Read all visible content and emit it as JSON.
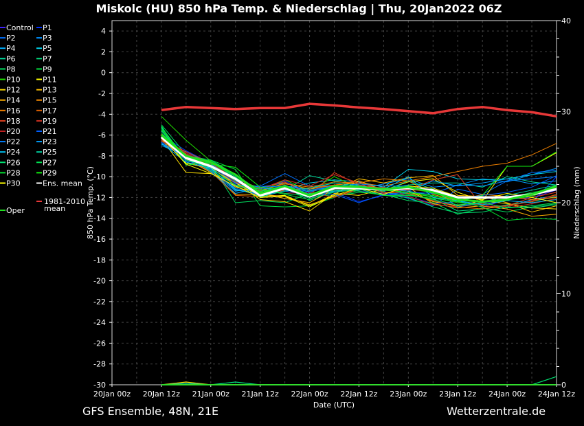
{
  "header": {
    "title": "Miskolc  (HU)  850 hPa Temp. & Niederschlag | Thu, 20Jan2022 06Z"
  },
  "footer": {
    "left": "GFS Ensemble, 48N, 21E",
    "right": "Wetterzentrale.de"
  },
  "chart_data": {
    "type": "line",
    "title": "Miskolc  (HU)  850 hPa Temp. & Niederschlag | Thu, 20Jan2022 06Z",
    "xlabel": "Date (UTC)",
    "ylabel": "850 hPa Temp. (°C)",
    "y2label": "Niederschlag (mm)",
    "x_ticks": [
      "20Jan 00z",
      "20Jan 12z",
      "21Jan 00z",
      "21Jan 12z",
      "22Jan 00z",
      "22Jan 12z",
      "23Jan 00z",
      "23Jan 12z",
      "24Jan 00z",
      "24Jan 12z"
    ],
    "x_range_hours": [
      0,
      108
    ],
    "x_start_hour": 12,
    "x_step_hours": 6,
    "ylim": [
      -30,
      5
    ],
    "y_ticks": [
      4,
      2,
      0,
      -2,
      -4,
      -6,
      -8,
      -10,
      -12,
      -14,
      -16,
      -18,
      -20,
      -22,
      -24,
      -26,
      -28,
      -30
    ],
    "y2lim": [
      0,
      40
    ],
    "y2_ticks": [
      0,
      10,
      20,
      30,
      40
    ],
    "grid": true,
    "legend_placement": "left-outside",
    "series": [
      {
        "name": "Control",
        "color": "#4020ff",
        "values": [
          -6.5,
          -7.8,
          -8.9,
          -10.4,
          -11.5,
          -11.0,
          -12.1,
          -11.3,
          -11.4,
          -11.6,
          -11.9,
          -12.6,
          -12.4,
          -12.9,
          -12.2,
          -12.0,
          -11.3
        ]
      },
      {
        "name": "P1",
        "color": "#0030ff",
        "values": [
          -6.0,
          -7.5,
          -8.7,
          -10.7,
          -11.2,
          -10.4,
          -11.6,
          -11.5,
          -12.4,
          -11.8,
          -11.6,
          -12.3,
          -12.8,
          -12.5,
          -12.3,
          -12.5,
          -10.0
        ]
      },
      {
        "name": "P2",
        "color": "#0070ff",
        "values": [
          -6.3,
          -7.9,
          -9.1,
          -10.9,
          -10.9,
          -9.7,
          -10.9,
          -11.0,
          -10.8,
          -11.4,
          -12.1,
          -12.8,
          -11.2,
          -11.7,
          -10.4,
          -9.6,
          -9.4
        ]
      },
      {
        "name": "P3",
        "color": "#0090ff",
        "values": [
          -6.8,
          -8.2,
          -9.4,
          -11.4,
          -11.0,
          -10.6,
          -11.5,
          -10.8,
          -11.2,
          -10.7,
          -10.2,
          -11.0,
          -10.8,
          -10.2,
          -10.5,
          -9.8,
          -9.2
        ]
      },
      {
        "name": "P4",
        "color": "#00b0ff",
        "values": [
          -6.9,
          -7.6,
          -8.8,
          -10.1,
          -11.3,
          -10.9,
          -11.2,
          -10.6,
          -10.9,
          -11.1,
          -11.4,
          -11.8,
          -12.4,
          -12.6,
          -12.9,
          -12.2,
          -11.8
        ]
      },
      {
        "name": "P5",
        "color": "#00d0e8",
        "values": [
          -6.6,
          -8.0,
          -9.2,
          -11.2,
          -11.8,
          -11.2,
          -10.6,
          -10.3,
          -10.5,
          -11.0,
          -9.3,
          -9.5,
          -10.2,
          -10.3,
          -10.2,
          -9.8,
          -9.5
        ]
      },
      {
        "name": "P6",
        "color": "#00e0a0",
        "values": [
          -5.2,
          -8.4,
          -9.0,
          -10.4,
          -12.0,
          -11.3,
          -9.9,
          -10.4,
          -10.8,
          -11.2,
          -10.8,
          -10.6,
          -10.6,
          -11.0,
          -10.0,
          -10.5,
          -10.8
        ]
      },
      {
        "name": "P7",
        "color": "#00e080",
        "values": [
          -5.6,
          -8.0,
          -8.4,
          -9.8,
          -11.4,
          -11.0,
          -12.3,
          -11.4,
          -11.0,
          -11.5,
          -11.8,
          -12.1,
          -13.3,
          -13.1,
          -12.7,
          -12.4,
          -11.9
        ],
        "precip": [
          0,
          0,
          0,
          0.3,
          0,
          0,
          0,
          0,
          0,
          0,
          0,
          0,
          0,
          0,
          0,
          0,
          0
        ]
      },
      {
        "name": "P8",
        "color": "#00e060",
        "values": [
          -5.0,
          -7.9,
          -8.8,
          -12.5,
          -12.3,
          -12.5,
          -11.6,
          -11.9,
          -11.5,
          -11.7,
          -12.3,
          -12.5,
          -13.6,
          -13.0,
          -13.4,
          -12.9,
          -12.6
        ]
      },
      {
        "name": "P9",
        "color": "#00e040",
        "values": [
          -5.4,
          -8.8,
          -8.4,
          -9.3,
          -12.8,
          -12.9,
          -12.8,
          -12.0,
          -11.3,
          -11.0,
          -11.6,
          -11.9,
          -12.2,
          -12.0,
          -12.1,
          -11.5,
          -11.2
        ]
      },
      {
        "name": "P10",
        "color": "#20e000",
        "values": [
          -4.2,
          -6.5,
          -8.5,
          -9.9,
          -11.5,
          -10.3,
          -11.4,
          -10.0,
          -11.1,
          -11.3,
          -11.5,
          -12.0,
          -12.5,
          -12.7,
          -12.2,
          -11.9,
          -11.0
        ]
      },
      {
        "name": "P11",
        "color": "#ffff00",
        "values": [
          -6.1,
          -8.7,
          -9.2,
          -10.6,
          -11.9,
          -11.8,
          -12.8,
          -11.7,
          -10.4,
          -11.3,
          -10.5,
          -10.2,
          -11.5,
          -12.3,
          -9.0,
          -9.0,
          -7.7
        ]
      },
      {
        "name": "P12",
        "color": "#ffe000",
        "values": [
          -6.3,
          -9.6,
          -9.7,
          -10.5,
          -12.2,
          -12.4,
          -13.3,
          -11.6,
          -11.8,
          -11.2,
          -11.4,
          -12.4,
          -12.8,
          -12.3,
          -12.6,
          -13.0,
          -13.1
        ],
        "precip": [
          0,
          0.3,
          0,
          0,
          0,
          0,
          0,
          0,
          0,
          0,
          0,
          0,
          0,
          0,
          0,
          0,
          0
        ]
      },
      {
        "name": "P13",
        "color": "#ffc000",
        "values": [
          -6.0,
          -8.3,
          -9.6,
          -11.0,
          -11.6,
          -12.1,
          -12.5,
          -11.2,
          -10.2,
          -10.6,
          -10.1,
          -9.9,
          -11.8,
          -11.9,
          -12.5,
          -13.4,
          -12.8
        ]
      },
      {
        "name": "P14",
        "color": "#ffb000",
        "values": [
          -6.4,
          -8.1,
          -9.3,
          -11.7,
          -11.7,
          -11.9,
          -12.7,
          -11.9,
          -11.2,
          -11.3,
          -11.0,
          -12.6,
          -13.0,
          -12.8,
          -13.1,
          -13.8,
          -13.6
        ]
      },
      {
        "name": "P15",
        "color": "#ff9000",
        "values": [
          -5.9,
          -7.9,
          -9.1,
          -10.8,
          -11.4,
          -10.6,
          -11.2,
          -10.8,
          -10.6,
          -10.2,
          -10.4,
          -11.7,
          -12.3,
          -11.7,
          -11.9,
          -12.2,
          -12.0
        ]
      },
      {
        "name": "P16",
        "color": "#f08000",
        "values": [
          -6.2,
          -8.1,
          -8.9,
          -10.3,
          -11.3,
          -10.7,
          -11.0,
          -10.5,
          -10.6,
          -10.9,
          -10.4,
          -10.0,
          -9.5,
          -9.0,
          -8.7,
          -7.9,
          -6.8
        ]
      },
      {
        "name": "P17",
        "color": "#e06000",
        "values": [
          -6.5,
          -8.3,
          -9.5,
          -11.8,
          -11.9,
          -11.3,
          -11.1,
          -10.8,
          -10.4,
          -11.5,
          -11.6,
          -12.3,
          -12.9,
          -13.1,
          -12.8,
          -12.4,
          -11.7
        ]
      },
      {
        "name": "P18",
        "color": "#e04020",
        "values": [
          -6.4,
          -7.6,
          -8.7,
          -10.2,
          -11.1,
          -10.5,
          -11.8,
          -9.6,
          -10.8,
          -11.1,
          -11.3,
          -10.3,
          -9.8,
          -12.9,
          -12.8,
          -12.0,
          -11.5
        ]
      },
      {
        "name": "P19",
        "color": "#d03020",
        "values": [
          -6.0,
          -7.8,
          -9.0,
          -10.6,
          -11.2,
          -10.3,
          -10.9,
          -9.8,
          -10.6,
          -11.6,
          -11.2,
          -11.5,
          -12.2,
          -12.5,
          -13.0,
          -12.6,
          -12.1
        ]
      },
      {
        "name": "P20",
        "color": "#c02020",
        "values": [
          -6.6,
          -7.7,
          -8.9,
          -10.5,
          -11.3,
          -11.6,
          -11.5,
          -12.0,
          -11.2,
          -11.0,
          -11.9,
          -12.7,
          -12.9,
          -12.6,
          -12.9,
          -12.3,
          -11.8
        ]
      },
      {
        "name": "P21",
        "color": "#0060ff",
        "values": [
          -6.7,
          -8.2,
          -9.3,
          -11.1,
          -11.8,
          -11.4,
          -11.7,
          -11.7,
          -12.5,
          -11.7,
          -11.5,
          -11.6,
          -12.1,
          -11.8,
          -11.5,
          -11.0,
          -9.9
        ]
      },
      {
        "name": "P22",
        "color": "#0080ff",
        "values": [
          -6.1,
          -8.5,
          -9.0,
          -10.6,
          -11.0,
          -10.9,
          -11.3,
          -10.9,
          -10.7,
          -10.9,
          -10.9,
          -11.6,
          -10.8,
          -10.9,
          -10.4,
          -10.2,
          -10.0
        ]
      },
      {
        "name": "P23",
        "color": "#00a0ff",
        "values": [
          -7.0,
          -8.0,
          -9.5,
          -11.6,
          -11.1,
          -11.3,
          -11.4,
          -11.0,
          -11.0,
          -11.1,
          -11.4,
          -10.4,
          -10.9,
          -10.6,
          -10.2,
          -10.7,
          -10.4
        ]
      },
      {
        "name": "P24",
        "color": "#00c0f0",
        "values": [
          -6.8,
          -8.6,
          -9.2,
          -11.3,
          -11.6,
          -10.8,
          -11.7,
          -11.4,
          -11.3,
          -11.2,
          -10.0,
          -12.0,
          -12.3,
          -12.7,
          -12.3,
          -12.5,
          -12.2
        ]
      },
      {
        "name": "P25",
        "color": "#00d0a0",
        "values": [
          -5.6,
          -8.2,
          -8.6,
          -10.0,
          -11.9,
          -11.4,
          -11.1,
          -10.6,
          -10.9,
          -11.4,
          -10.4,
          -11.2,
          -12.9,
          -12.5,
          -11.8,
          -11.3,
          -10.8
        ],
        "precip": [
          0,
          0.15,
          0,
          0,
          0,
          0,
          0,
          0,
          0,
          0,
          0,
          0,
          0,
          0,
          0,
          0,
          0
        ]
      },
      {
        "name": "P26",
        "color": "#00e070",
        "values": [
          -5.3,
          -8.4,
          -9.1,
          -10.9,
          -11.4,
          -11.0,
          -12.1,
          -11.5,
          -11.2,
          -11.8,
          -12.0,
          -12.9,
          -13.5,
          -13.4,
          -12.9,
          -13.0,
          -12.7
        ],
        "precip": [
          0,
          0,
          0,
          0,
          0,
          0,
          0,
          0,
          0,
          0,
          0,
          0,
          0,
          0,
          0,
          0,
          0.9
        ]
      },
      {
        "name": "P27",
        "color": "#00e050",
        "values": [
          -5.8,
          -8.0,
          -9.4,
          -10.8,
          -11.2,
          -11.6,
          -11.9,
          -11.3,
          -11.2,
          -11.1,
          -11.7,
          -12.2,
          -12.7,
          -12.5,
          -13.0,
          -12.8,
          -12.5
        ]
      },
      {
        "name": "P28",
        "color": "#00e030",
        "values": [
          -5.1,
          -8.9,
          -8.6,
          -10.1,
          -11.2,
          -11.7,
          -12.2,
          -11.1,
          -11.4,
          -11.8,
          -11.8,
          -12.1,
          -12.4,
          -12.9,
          -14.2,
          -14.0,
          -14.1
        ]
      },
      {
        "name": "P29",
        "color": "#10f010",
        "values": [
          -5.5,
          -8.1,
          -8.8,
          -9.1,
          -11.0,
          -11.2,
          -11.7,
          -10.9,
          -10.9,
          -11.3,
          -11.5,
          -11.8,
          -12.4,
          -11.8,
          -9.0,
          -9.0,
          -7.6
        ]
      },
      {
        "name": "P30",
        "color": "#ffff00",
        "values": [
          -6.2,
          -8.8,
          -9.7,
          -10.9,
          -12.0,
          -11.9,
          -12.9,
          -11.8,
          -11.1,
          -11.7,
          -10.9,
          -11.1,
          -11.9,
          -12.2,
          -11.6,
          -12.0,
          -12.5
        ]
      }
    ],
    "ens_mean": {
      "name": "Ens. mean",
      "color": "#ffffff",
      "values": [
        -6.2,
        -8.2,
        -9.0,
        -10.2,
        -11.8,
        -11.1,
        -11.9,
        -11.1,
        -11.1,
        -11.2,
        -11.1,
        -11.3,
        -12.0,
        -12.0,
        -12.0,
        -11.7,
        -11.2
      ]
    },
    "climate_mean": {
      "name": "1981-2010 mean",
      "name_lines": [
        "1981-2010",
        "mean"
      ],
      "color": "#e83838",
      "values": [
        -3.6,
        -3.3,
        -3.4,
        -3.5,
        -3.4,
        -3.4,
        -3.0,
        -3.15,
        -3.35,
        -3.5,
        -3.7,
        -3.9,
        -3.5,
        -3.3,
        -3.6,
        -3.8,
        -4.2
      ]
    },
    "oper": {
      "name": "Oper",
      "color": "#20e020",
      "values": [
        -6.0,
        -8.0,
        -8.6,
        -9.8,
        -11.6,
        -10.9,
        -11.8,
        -10.9,
        -11.0,
        -11.2,
        -11.0,
        -11.5,
        -12.2,
        -12.4,
        -12.2,
        -11.7,
        -10.9
      ]
    }
  }
}
